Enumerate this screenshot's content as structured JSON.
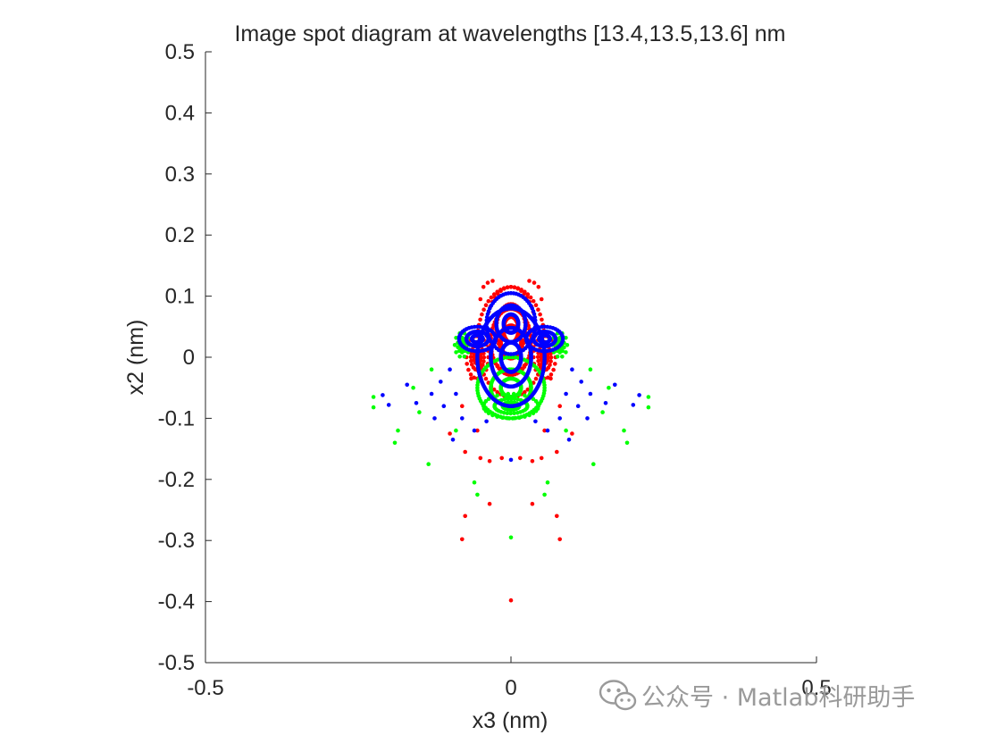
{
  "chart_data": {
    "type": "scatter",
    "title": "Image spot diagram at wavelengths [13.4,13.5,13.6] nm",
    "xlabel": "x3 (nm)",
    "ylabel": "x2 (nm)",
    "xlim": [
      -0.5,
      0.5
    ],
    "ylim": [
      -0.5,
      0.5
    ],
    "x_ticks": [
      -0.5,
      0,
      0.5
    ],
    "x_tick_labels": [
      "-0.5",
      "0",
      "0.5"
    ],
    "y_ticks": [
      0.5,
      0.4,
      0.3,
      0.2,
      0.1,
      0,
      -0.1,
      -0.2,
      -0.3,
      -0.4,
      -0.5
    ],
    "y_tick_labels": [
      "0.5",
      "0.4",
      "0.3",
      "0.2",
      "0.1",
      "0",
      "-0.1",
      "-0.2",
      "-0.3",
      "-0.4",
      "-0.5"
    ],
    "grid": false,
    "series": [
      {
        "color": "#ff0000",
        "clusters": [
          {
            "cx": 0.0,
            "cy": 0.025,
            "rx": 0.055,
            "ry": 0.09,
            "n": 60
          },
          {
            "cx": 0.0,
            "cy": 0.045,
            "rx": 0.04,
            "ry": 0.07,
            "n": 44
          },
          {
            "cx": -0.055,
            "cy": 0.0,
            "rx": 0.018,
            "ry": 0.035,
            "n": 20
          },
          {
            "cx": 0.055,
            "cy": 0.0,
            "rx": 0.018,
            "ry": 0.035,
            "n": 20
          }
        ],
        "points": [
          {
            "x": -0.045,
            "y": 0.115
          },
          {
            "x": -0.038,
            "y": 0.122
          },
          {
            "x": -0.03,
            "y": 0.125
          },
          {
            "x": 0.03,
            "y": 0.125
          },
          {
            "x": 0.038,
            "y": 0.122
          },
          {
            "x": 0.045,
            "y": 0.115
          },
          {
            "x": -0.05,
            "y": 0.095
          },
          {
            "x": 0.05,
            "y": 0.095
          },
          {
            "x": -0.065,
            "y": -0.035
          },
          {
            "x": 0.065,
            "y": -0.035
          },
          {
            "x": -0.08,
            "y": -0.08
          },
          {
            "x": 0.08,
            "y": -0.08
          },
          {
            "x": -0.055,
            "y": -0.12
          },
          {
            "x": 0.055,
            "y": -0.12
          },
          {
            "x": -0.1,
            "y": -0.125
          },
          {
            "x": 0.1,
            "y": -0.125
          },
          {
            "x": -0.075,
            "y": -0.155
          },
          {
            "x": -0.05,
            "y": -0.165
          },
          {
            "x": -0.015,
            "y": -0.165
          },
          {
            "x": 0.015,
            "y": -0.165
          },
          {
            "x": 0.05,
            "y": -0.165
          },
          {
            "x": 0.075,
            "y": -0.155
          },
          {
            "x": -0.035,
            "y": -0.17
          },
          {
            "x": 0.035,
            "y": -0.17
          },
          {
            "x": -0.075,
            "y": -0.26
          },
          {
            "x": 0.075,
            "y": -0.26
          },
          {
            "x": -0.035,
            "y": -0.24
          },
          {
            "x": 0.035,
            "y": -0.24
          },
          {
            "x": -0.08,
            "y": -0.298
          },
          {
            "x": 0.08,
            "y": -0.298
          },
          {
            "x": 0.0,
            "y": -0.398
          }
        ]
      },
      {
        "color": "#00ff00",
        "clusters": [
          {
            "cx": 0.0,
            "cy": -0.05,
            "rx": 0.055,
            "ry": 0.05,
            "n": 70
          },
          {
            "cx": 0.0,
            "cy": -0.08,
            "rx": 0.045,
            "ry": 0.02,
            "n": 30
          },
          {
            "cx": -0.08,
            "cy": 0.02,
            "rx": 0.012,
            "ry": 0.02,
            "n": 10
          },
          {
            "cx": 0.08,
            "cy": 0.02,
            "rx": 0.012,
            "ry": 0.02,
            "n": 10
          }
        ],
        "points": [
          {
            "x": -0.225,
            "y": -0.065
          },
          {
            "x": -0.225,
            "y": -0.082
          },
          {
            "x": 0.225,
            "y": -0.065
          },
          {
            "x": 0.225,
            "y": -0.082
          },
          {
            "x": -0.185,
            "y": -0.12
          },
          {
            "x": 0.185,
            "y": -0.12
          },
          {
            "x": -0.19,
            "y": -0.14
          },
          {
            "x": 0.19,
            "y": -0.14
          },
          {
            "x": -0.15,
            "y": -0.09
          },
          {
            "x": 0.15,
            "y": -0.09
          },
          {
            "x": -0.13,
            "y": -0.02
          },
          {
            "x": 0.13,
            "y": -0.02
          },
          {
            "x": -0.135,
            "y": -0.175
          },
          {
            "x": 0.135,
            "y": -0.175
          },
          {
            "x": -0.16,
            "y": -0.05
          },
          {
            "x": 0.16,
            "y": -0.05
          },
          {
            "x": -0.06,
            "y": -0.205
          },
          {
            "x": 0.06,
            "y": -0.205
          },
          {
            "x": -0.055,
            "y": -0.225
          },
          {
            "x": 0.055,
            "y": -0.225
          },
          {
            "x": 0.0,
            "y": -0.295
          },
          {
            "x": -0.09,
            "y": -0.12
          },
          {
            "x": 0.09,
            "y": -0.12
          }
        ]
      },
      {
        "color": "#0000ff",
        "clusters": [
          {
            "cx": 0.0,
            "cy": 0.0,
            "rx": 0.055,
            "ry": 0.08,
            "n": 160
          },
          {
            "cx": 0.0,
            "cy": 0.055,
            "rx": 0.04,
            "ry": 0.05,
            "n": 60
          },
          {
            "cx": -0.055,
            "cy": 0.03,
            "rx": 0.03,
            "ry": 0.02,
            "n": 40
          },
          {
            "cx": 0.055,
            "cy": 0.03,
            "rx": 0.03,
            "ry": 0.02,
            "n": 40
          }
        ],
        "points": [
          {
            "x": -0.21,
            "y": -0.062
          },
          {
            "x": 0.21,
            "y": -0.062
          },
          {
            "x": -0.2,
            "y": -0.078
          },
          {
            "x": 0.2,
            "y": -0.078
          },
          {
            "x": -0.17,
            "y": -0.045
          },
          {
            "x": 0.17,
            "y": -0.045
          },
          {
            "x": -0.155,
            "y": -0.075
          },
          {
            "x": 0.155,
            "y": -0.075
          },
          {
            "x": -0.13,
            "y": -0.06
          },
          {
            "x": 0.13,
            "y": -0.06
          },
          {
            "x": -0.115,
            "y": -0.04
          },
          {
            "x": 0.115,
            "y": -0.04
          },
          {
            "x": -0.1,
            "y": -0.02
          },
          {
            "x": 0.1,
            "y": -0.02
          },
          {
            "x": -0.125,
            "y": -0.1
          },
          {
            "x": 0.125,
            "y": -0.1
          },
          {
            "x": -0.09,
            "y": -0.06
          },
          {
            "x": 0.09,
            "y": -0.06
          },
          {
            "x": -0.11,
            "y": -0.08
          },
          {
            "x": 0.11,
            "y": -0.08
          },
          {
            "x": -0.08,
            "y": -0.1
          },
          {
            "x": 0.08,
            "y": -0.1
          },
          {
            "x": -0.06,
            "y": -0.12
          },
          {
            "x": 0.06,
            "y": -0.12
          },
          {
            "x": 0.0,
            "y": -0.168
          },
          {
            "x": -0.095,
            "y": -0.135
          },
          {
            "x": 0.095,
            "y": -0.135
          },
          {
            "x": -0.04,
            "y": -0.105
          },
          {
            "x": 0.04,
            "y": -0.105
          }
        ]
      }
    ]
  },
  "watermark": {
    "icon": "wechat-icon",
    "text": "公众号 · Matlab科研助手"
  }
}
